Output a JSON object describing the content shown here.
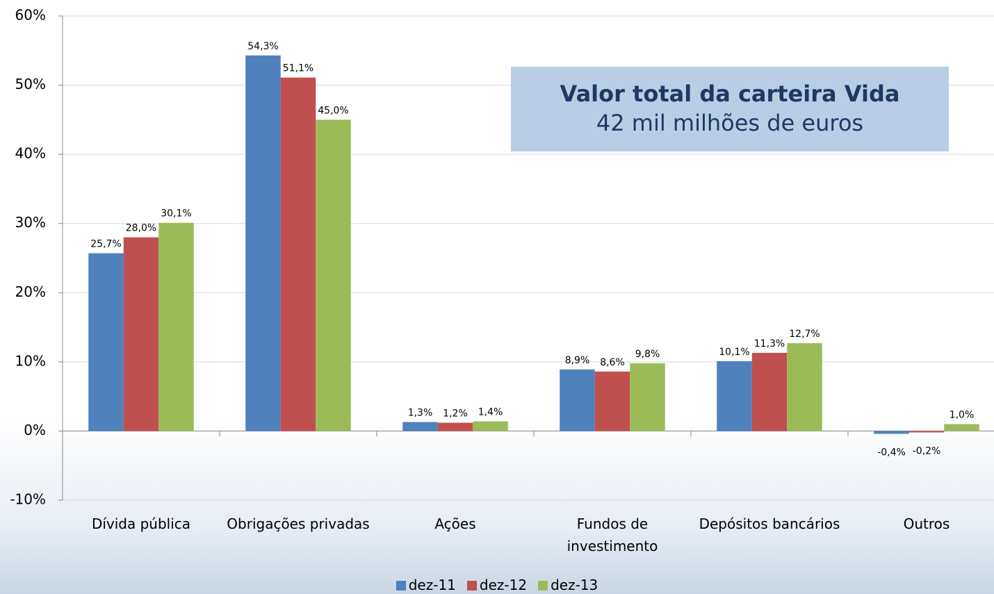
{
  "chart_data": {
    "type": "bar",
    "categories": [
      "Dívida pública",
      "Obrigações privadas",
      "Ações",
      "Fundos de\ninvestimento",
      "Depósitos bancários",
      "Outros"
    ],
    "series": [
      {
        "name": "dez-11",
        "color": "#4f81bd",
        "values": [
          25.7,
          54.3,
          1.3,
          8.9,
          10.1,
          -0.4
        ],
        "value_labels": [
          "25,7%",
          "54,3%",
          "1,3%",
          "8,9%",
          "10,1%",
          "-0,4%"
        ]
      },
      {
        "name": "dez-12",
        "color": "#c0504d",
        "values": [
          28.0,
          51.1,
          1.2,
          8.6,
          11.3,
          -0.2
        ],
        "value_labels": [
          "28,0%",
          "51,1%",
          "1,2%",
          "8,6%",
          "11,3%",
          "-0,2%"
        ]
      },
      {
        "name": "dez-13",
        "color": "#9bbb59",
        "values": [
          30.1,
          45.0,
          1.4,
          9.8,
          12.7,
          1.0
        ],
        "value_labels": [
          "30,1%",
          "45,0%",
          "1,4%",
          "9,8%",
          "12,7%",
          "1,0%"
        ]
      }
    ],
    "ylim": [
      -10,
      60
    ],
    "yticks": [
      {
        "value": -10,
        "label": "-10%"
      },
      {
        "value": 0,
        "label": "0%"
      },
      {
        "value": 10,
        "label": "10%"
      },
      {
        "value": 20,
        "label": "20%"
      },
      {
        "value": 30,
        "label": "30%"
      },
      {
        "value": 40,
        "label": "40%"
      },
      {
        "value": 50,
        "label": "50%"
      },
      {
        "value": 60,
        "label": "60%"
      }
    ],
    "grid": true,
    "legend": "bottom",
    "annotation": {
      "title": "Valor total da carteira Vida",
      "text": "42 mil milhões de euros"
    }
  }
}
